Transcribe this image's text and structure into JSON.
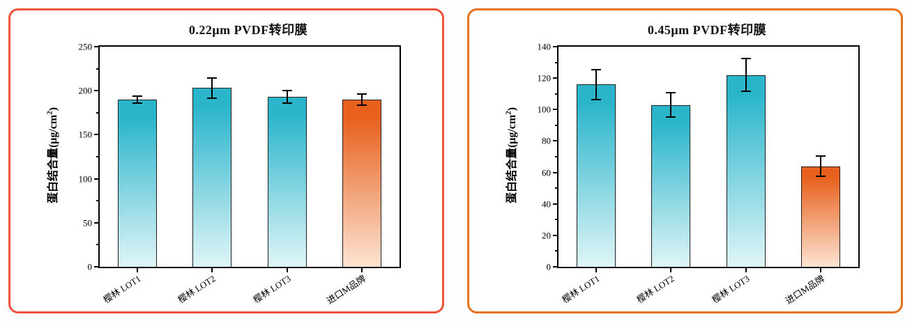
{
  "page": {
    "background": "#fcfdfd"
  },
  "cards": [
    {
      "border_color": "#f2513b"
    },
    {
      "border_color": "#e8711c"
    }
  ],
  "axis_color": "#000000",
  "bar_outline_color": "#1f1f1f",
  "error_bar_color": "#000000",
  "chart_data": [
    {
      "type": "bar",
      "title": "0.22μm PVDF转印膜",
      "ylabel": "蛋白结合量(μg/cm²)",
      "ylabel_parts": {
        "main": "蛋白结合量(μg/cm",
        "sup": "2",
        "end": ")"
      },
      "xlabel": "",
      "categories": [
        "樱林 LOT1",
        "樱林 LOT2",
        "樱林 LOT3",
        "进口M品牌"
      ],
      "values": [
        190,
        203,
        193,
        190
      ],
      "errors": [
        5,
        12,
        8,
        7
      ],
      "ylim": [
        0,
        250
      ],
      "yticks": [
        0,
        50,
        100,
        150,
        200,
        250
      ],
      "minor_tick_step": 25,
      "grid": false,
      "legend": null,
      "bar_colors": [
        {
          "top": "#2ab5cb",
          "bottom": "#e0f5f7"
        },
        {
          "top": "#2ab5cb",
          "bottom": "#e0f5f7"
        },
        {
          "top": "#2ab5cb",
          "bottom": "#e0f5f7"
        },
        {
          "top": "#e7601d",
          "bottom": "#fce4d2"
        }
      ]
    },
    {
      "type": "bar",
      "title": "0.45μm PVDF转印膜",
      "ylabel": "蛋白结合量(μg/cm²)",
      "ylabel_parts": {
        "main": "蛋白结合量(μg/cm",
        "sup": "2",
        "end": ")"
      },
      "xlabel": "",
      "categories": [
        "樱林 LOT1",
        "樱林 LOT2",
        "樱林 LOT3",
        "进口M品牌"
      ],
      "values": [
        116,
        103,
        122,
        64
      ],
      "errors": [
        10,
        8,
        11,
        7
      ],
      "ylim": [
        0,
        140
      ],
      "yticks": [
        0,
        20,
        40,
        60,
        80,
        100,
        120,
        140
      ],
      "minor_tick_step": 10,
      "grid": false,
      "legend": null,
      "bar_colors": [
        {
          "top": "#2ab5cb",
          "bottom": "#e0f5f7"
        },
        {
          "top": "#2ab5cb",
          "bottom": "#e0f5f7"
        },
        {
          "top": "#2ab5cb",
          "bottom": "#e0f5f7"
        },
        {
          "top": "#e7601d",
          "bottom": "#fce4d2"
        }
      ]
    }
  ]
}
